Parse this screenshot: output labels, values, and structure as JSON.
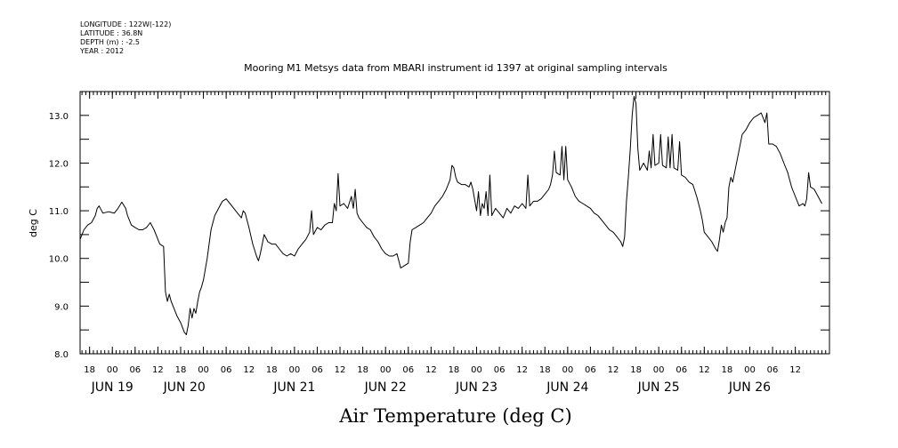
{
  "header": {
    "meta_lines": [
      "LONGITUDE : 122W(-122)",
      "LATITUDE : 36.8N",
      "DEPTH (m) : -2.5",
      "YEAR : 2012"
    ],
    "title": "Mooring M1 Metsys data from MBARI instrument id 1397 at original sampling intervals"
  },
  "chart_data": {
    "type": "line",
    "title": "Mooring M1 Metsys data from MBARI instrument id 1397 at original sampling intervals",
    "xlabel": "Air Temperature (deg C)",
    "ylabel": "deg C",
    "x_unit": "hours from 2012-06-18 00:00",
    "xlim": [
      15.5,
      213
    ],
    "ylim": [
      8.0,
      13.5
    ],
    "yticks": [
      8.0,
      9.0,
      10.0,
      11.0,
      12.0,
      13.0
    ],
    "ytick_labels": [
      "8.0",
      "9.0",
      "10.0",
      "11.0",
      "12.0",
      "13.0"
    ],
    "hour_ticks": [
      {
        "t": 18,
        "label": "18"
      },
      {
        "t": 24,
        "label": "00"
      },
      {
        "t": 30,
        "label": "06"
      },
      {
        "t": 36,
        "label": "12"
      },
      {
        "t": 42,
        "label": "18"
      },
      {
        "t": 48,
        "label": "00"
      },
      {
        "t": 54,
        "label": "06"
      },
      {
        "t": 60,
        "label": "12"
      },
      {
        "t": 66,
        "label": "18"
      },
      {
        "t": 72,
        "label": "00"
      },
      {
        "t": 78,
        "label": "06"
      },
      {
        "t": 84,
        "label": "12"
      },
      {
        "t": 90,
        "label": "18"
      },
      {
        "t": 96,
        "label": "00"
      },
      {
        "t": 102,
        "label": "06"
      },
      {
        "t": 108,
        "label": "12"
      },
      {
        "t": 114,
        "label": "18"
      },
      {
        "t": 120,
        "label": "00"
      },
      {
        "t": 126,
        "label": "06"
      },
      {
        "t": 132,
        "label": "12"
      },
      {
        "t": 138,
        "label": "18"
      },
      {
        "t": 144,
        "label": "00"
      },
      {
        "t": 150,
        "label": "06"
      },
      {
        "t": 156,
        "label": "12"
      },
      {
        "t": 162,
        "label": "18"
      },
      {
        "t": 168,
        "label": "00"
      },
      {
        "t": 174,
        "label": "06"
      },
      {
        "t": 180,
        "label": "12"
      },
      {
        "t": 186,
        "label": "18"
      },
      {
        "t": 192,
        "label": "00"
      },
      {
        "t": 198,
        "label": "06"
      },
      {
        "t": 204,
        "label": "12"
      }
    ],
    "day_labels": [
      {
        "t": 24,
        "label": "JUN 19"
      },
      {
        "t": 43,
        "label": "JUN 20"
      },
      {
        "t": 72,
        "label": "JUN 21"
      },
      {
        "t": 96,
        "label": "JUN 22"
      },
      {
        "t": 120,
        "label": "JUN 23"
      },
      {
        "t": 144,
        "label": "JUN 24"
      },
      {
        "t": 168,
        "label": "JUN 25"
      },
      {
        "t": 192,
        "label": "JUN 26"
      }
    ],
    "series": [
      {
        "color": "#000000",
        "points": [
          [
            15.5,
            10.4
          ],
          [
            16.5,
            10.6
          ],
          [
            17.5,
            10.7
          ],
          [
            18.5,
            10.75
          ],
          [
            19.5,
            10.9
          ],
          [
            20,
            11.05
          ],
          [
            20.5,
            11.1
          ],
          [
            21.5,
            10.95
          ],
          [
            23,
            10.98
          ],
          [
            24.5,
            10.95
          ],
          [
            25.5,
            11.05
          ],
          [
            26.5,
            11.18
          ],
          [
            27.5,
            11.05
          ],
          [
            28,
            10.9
          ],
          [
            29,
            10.7
          ],
          [
            30,
            10.65
          ],
          [
            31,
            10.6
          ],
          [
            32,
            10.6
          ],
          [
            33,
            10.65
          ],
          [
            34,
            10.75
          ],
          [
            35,
            10.6
          ],
          [
            35.5,
            10.5
          ],
          [
            36.5,
            10.3
          ],
          [
            37.5,
            10.25
          ],
          [
            38,
            9.3
          ],
          [
            38.5,
            9.1
          ],
          [
            39,
            9.25
          ],
          [
            39.5,
            9.1
          ],
          [
            40,
            9.0
          ],
          [
            41,
            8.8
          ],
          [
            42,
            8.65
          ],
          [
            43,
            8.45
          ],
          [
            43.5,
            8.4
          ],
          [
            44,
            8.6
          ],
          [
            44.5,
            8.95
          ],
          [
            45,
            8.75
          ],
          [
            45.5,
            8.95
          ],
          [
            46,
            8.85
          ],
          [
            46.5,
            9.1
          ],
          [
            47,
            9.3
          ],
          [
            47.5,
            9.4
          ],
          [
            48,
            9.55
          ],
          [
            49,
            10.0
          ],
          [
            50,
            10.6
          ],
          [
            51,
            10.9
          ],
          [
            52,
            11.05
          ],
          [
            53,
            11.2
          ],
          [
            54,
            11.25
          ],
          [
            55,
            11.15
          ],
          [
            56,
            11.05
          ],
          [
            57,
            10.95
          ],
          [
            58,
            10.85
          ],
          [
            58.5,
            11.0
          ],
          [
            59,
            10.95
          ],
          [
            60,
            10.65
          ],
          [
            61,
            10.3
          ],
          [
            62,
            10.05
          ],
          [
            62.5,
            9.95
          ],
          [
            63,
            10.1
          ],
          [
            64,
            10.5
          ],
          [
            65,
            10.35
          ],
          [
            66,
            10.3
          ],
          [
            67,
            10.3
          ],
          [
            68,
            10.2
          ],
          [
            69,
            10.1
          ],
          [
            70,
            10.05
          ],
          [
            71,
            10.1
          ],
          [
            72,
            10.05
          ],
          [
            73,
            10.2
          ],
          [
            74,
            10.3
          ],
          [
            75,
            10.4
          ],
          [
            76,
            10.55
          ],
          [
            76.5,
            11.0
          ],
          [
            77,
            10.5
          ],
          [
            78,
            10.65
          ],
          [
            79,
            10.6
          ],
          [
            80,
            10.7
          ],
          [
            81,
            10.75
          ],
          [
            82,
            10.75
          ],
          [
            82.5,
            11.15
          ],
          [
            83,
            11.0
          ],
          [
            83.5,
            11.78
          ],
          [
            84,
            11.1
          ],
          [
            85,
            11.15
          ],
          [
            86,
            11.05
          ],
          [
            87,
            11.3
          ],
          [
            87.5,
            11.05
          ],
          [
            88,
            11.45
          ],
          [
            88.5,
            10.95
          ],
          [
            89,
            10.85
          ],
          [
            90,
            10.75
          ],
          [
            91,
            10.65
          ],
          [
            92,
            10.6
          ],
          [
            93,
            10.45
          ],
          [
            94,
            10.35
          ],
          [
            95,
            10.2
          ],
          [
            96,
            10.1
          ],
          [
            97,
            10.05
          ],
          [
            98,
            10.05
          ],
          [
            99,
            10.1
          ],
          [
            99.5,
            9.95
          ],
          [
            100,
            9.8
          ],
          [
            101,
            9.85
          ],
          [
            102,
            9.9
          ],
          [
            102.5,
            10.35
          ],
          [
            103,
            10.6
          ],
          [
            104,
            10.65
          ],
          [
            105,
            10.7
          ],
          [
            106,
            10.75
          ],
          [
            107,
            10.85
          ],
          [
            108,
            10.95
          ],
          [
            109,
            11.1
          ],
          [
            110,
            11.2
          ],
          [
            111,
            11.3
          ],
          [
            112,
            11.45
          ],
          [
            113,
            11.65
          ],
          [
            113.5,
            11.95
          ],
          [
            114,
            11.9
          ],
          [
            114.5,
            11.7
          ],
          [
            115,
            11.6
          ],
          [
            116,
            11.55
          ],
          [
            117,
            11.55
          ],
          [
            118,
            11.5
          ],
          [
            118.5,
            11.6
          ],
          [
            119,
            11.45
          ],
          [
            120,
            11.0
          ],
          [
            120.5,
            11.4
          ],
          [
            121,
            10.9
          ],
          [
            121.5,
            11.15
          ],
          [
            122,
            11.05
          ],
          [
            122.5,
            11.4
          ],
          [
            123,
            10.9
          ],
          [
            123.5,
            11.75
          ],
          [
            124,
            10.9
          ],
          [
            125,
            11.05
          ],
          [
            126,
            10.95
          ],
          [
            127,
            10.85
          ],
          [
            128,
            11.05
          ],
          [
            129,
            10.95
          ],
          [
            130,
            11.1
          ],
          [
            131,
            11.05
          ],
          [
            132,
            11.15
          ],
          [
            133,
            11.05
          ],
          [
            133.5,
            11.75
          ],
          [
            134,
            11.1
          ],
          [
            135,
            11.2
          ],
          [
            136,
            11.2
          ],
          [
            137,
            11.25
          ],
          [
            138,
            11.35
          ],
          [
            139,
            11.45
          ],
          [
            139.5,
            11.55
          ],
          [
            140,
            11.75
          ],
          [
            140.5,
            12.25
          ],
          [
            141,
            11.8
          ],
          [
            142,
            11.75
          ],
          [
            142.5,
            12.35
          ],
          [
            143,
            11.65
          ],
          [
            143.5,
            12.35
          ],
          [
            144,
            11.65
          ],
          [
            145,
            11.5
          ],
          [
            146,
            11.3
          ],
          [
            147,
            11.2
          ],
          [
            148,
            11.15
          ],
          [
            149,
            11.1
          ],
          [
            150,
            11.05
          ],
          [
            151,
            10.95
          ],
          [
            152,
            10.9
          ],
          [
            153,
            10.8
          ],
          [
            154,
            10.7
          ],
          [
            155,
            10.6
          ],
          [
            156,
            10.55
          ],
          [
            157,
            10.45
          ],
          [
            158,
            10.35
          ],
          [
            158.5,
            10.25
          ],
          [
            159,
            10.45
          ],
          [
            159.5,
            11.2
          ],
          [
            160,
            11.7
          ],
          [
            160.5,
            12.3
          ],
          [
            161,
            13.0
          ],
          [
            161.5,
            13.4
          ],
          [
            162,
            13.25
          ],
          [
            162.5,
            12.3
          ],
          [
            163,
            11.85
          ],
          [
            164,
            12.0
          ],
          [
            165,
            11.85
          ],
          [
            165.5,
            12.25
          ],
          [
            166,
            11.9
          ],
          [
            166.5,
            12.6
          ],
          [
            167,
            11.95
          ],
          [
            168,
            12.0
          ],
          [
            168.5,
            12.6
          ],
          [
            169,
            11.95
          ],
          [
            170,
            11.9
          ],
          [
            170.5,
            12.55
          ],
          [
            171,
            11.9
          ],
          [
            171.5,
            12.6
          ],
          [
            172,
            11.9
          ],
          [
            173,
            11.85
          ],
          [
            173.5,
            12.45
          ],
          [
            174,
            11.75
          ],
          [
            175,
            11.7
          ],
          [
            176,
            11.6
          ],
          [
            177,
            11.55
          ],
          [
            178,
            11.3
          ],
          [
            179,
            11.0
          ],
          [
            179.5,
            10.8
          ],
          [
            180,
            10.55
          ],
          [
            181,
            10.45
          ],
          [
            182,
            10.35
          ],
          [
            183,
            10.2
          ],
          [
            183.5,
            10.15
          ],
          [
            184,
            10.4
          ],
          [
            184.5,
            10.7
          ],
          [
            185,
            10.55
          ],
          [
            185.5,
            10.75
          ],
          [
            186,
            10.85
          ],
          [
            186.5,
            11.5
          ],
          [
            187,
            11.7
          ],
          [
            187.5,
            11.6
          ],
          [
            188,
            11.8
          ],
          [
            189,
            12.2
          ],
          [
            190,
            12.6
          ],
          [
            191,
            12.7
          ],
          [
            192,
            12.85
          ],
          [
            193,
            12.95
          ],
          [
            194,
            13.0
          ],
          [
            195,
            13.05
          ],
          [
            195.5,
            12.95
          ],
          [
            196,
            12.85
          ],
          [
            196.5,
            13.05
          ],
          [
            197,
            12.4
          ],
          [
            198,
            12.4
          ],
          [
            199,
            12.35
          ],
          [
            200,
            12.2
          ],
          [
            201,
            12.0
          ],
          [
            202,
            11.8
          ],
          [
            203,
            11.5
          ],
          [
            204,
            11.3
          ],
          [
            205,
            11.1
          ],
          [
            206,
            11.15
          ],
          [
            206.5,
            11.1
          ],
          [
            207,
            11.25
          ],
          [
            207.5,
            11.8
          ],
          [
            208,
            11.5
          ],
          [
            209,
            11.45
          ],
          [
            210,
            11.3
          ],
          [
            211,
            11.15
          ]
        ]
      }
    ]
  }
}
